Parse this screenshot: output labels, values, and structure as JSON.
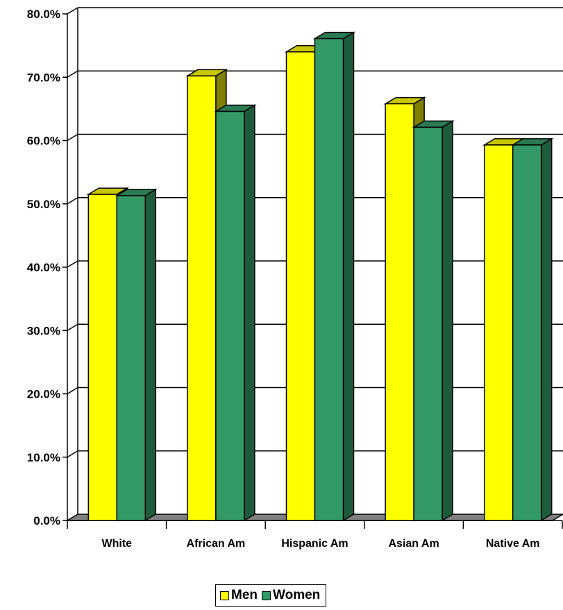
{
  "chart_data": {
    "type": "bar",
    "categories": [
      "White",
      "African Am",
      "Hispanic Am",
      "Asian Am",
      "Native Am"
    ],
    "series": [
      {
        "name": "Men",
        "values": [
          51.5,
          70.2,
          74.0,
          65.8,
          59.3
        ],
        "color": "#ffff00",
        "top_color": "#c8c800",
        "side_color": "#808000"
      },
      {
        "name": "Women",
        "values": [
          51.3,
          64.6,
          76.1,
          62.1,
          59.3
        ],
        "color": "#339966",
        "top_color": "#2a7a52",
        "side_color": "#1e5a3c"
      }
    ],
    "yticks": [
      "0.0%",
      "10.0%",
      "20.0%",
      "30.0%",
      "40.0%",
      "50.0%",
      "60.0%",
      "70.0%",
      "80.0%"
    ],
    "ylim": [
      0,
      80
    ],
    "title": "",
    "xlabel": "",
    "ylabel": "",
    "grid": true,
    "legend_position": "bottom"
  }
}
